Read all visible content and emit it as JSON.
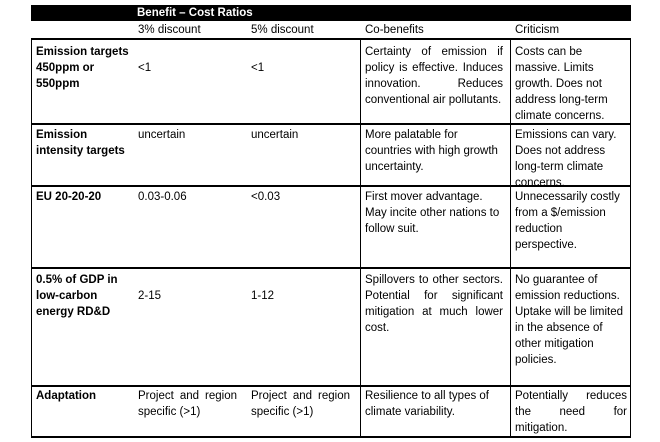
{
  "header": {
    "group_label": "Benefit – Cost Ratios"
  },
  "columns": {
    "discount3": "3% discount",
    "discount5": "5% discount",
    "cobenefits": "Co-benefits",
    "criticism": "Criticism"
  },
  "rows": [
    {
      "label": "Emission targets 450ppm or 550ppm",
      "discount3": "<1",
      "discount5": "<1",
      "cobenefits": "Certainty of emission if policy is effective. Induces innovation. Reduces conventional air pollutants.",
      "criticism": "Costs can be massive. Limits growth. Does not address long-term climate concerns."
    },
    {
      "label": "Emission intensity targets",
      "discount3": "uncertain",
      "discount5": "uncertain",
      "cobenefits": "More palatable for countries with high growth uncertainty.",
      "criticism": "Emissions can vary. Does not address long-term climate concerns."
    },
    {
      "label": "EU 20-20-20",
      "discount3": "0.03-0.06",
      "discount5": "<0.03",
      "cobenefits": "First mover advantage. May incite other nations to follow suit.",
      "criticism": "Unnecessarily costly from a $/emission reduction perspective."
    },
    {
      "label": "0.5% of GDP in low-carbon energy RD&D",
      "discount3": "2-15",
      "discount5": "1-12",
      "cobenefits": "Spillovers to other sectors. Potential for significant mitigation at much lower cost.",
      "criticism": "No guarantee of emission reductions. Uptake will be limited in the absence of other mitigation policies."
    },
    {
      "label": "Adaptation",
      "discount3": "Project and region specific (>1)",
      "discount5": "Project and region specific (>1)",
      "cobenefits": "Resilience to all types of climate variability.",
      "criticism": "Potentially reduces the need for mitigation."
    }
  ]
}
